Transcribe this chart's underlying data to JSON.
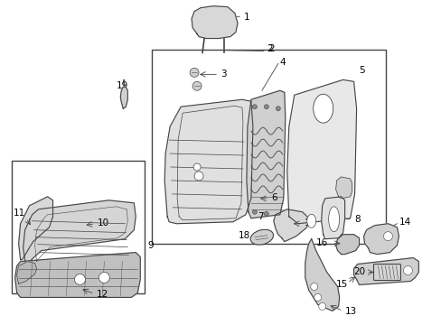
{
  "background_color": "#ffffff",
  "line_color": "#444444",
  "label_color": "#000000",
  "fig_w": 4.89,
  "fig_h": 3.6,
  "dpi": 100
}
